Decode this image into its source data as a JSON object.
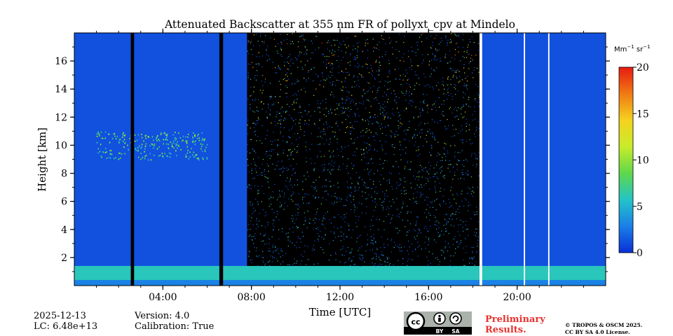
{
  "chart_data": {
    "type": "heatmap",
    "title": "Attenuated Backscatter at 355 nm FR of pollyxt_cpv at Mindelo",
    "xlabel": "Time [UTC]",
    "ylabel": "Height [km]",
    "xlim": [
      0,
      24
    ],
    "ylim": [
      0,
      18
    ],
    "x_ticks": [
      {
        "value": 4,
        "label": "04:00"
      },
      {
        "value": 8,
        "label": "08:00"
      },
      {
        "value": 12,
        "label": "12:00"
      },
      {
        "value": 16,
        "label": "16:00"
      },
      {
        "value": 20,
        "label": "20:00"
      }
    ],
    "y_ticks": [
      2,
      4,
      6,
      8,
      10,
      12,
      14,
      16
    ],
    "colorbar": {
      "label": "Mm-1 sr-1",
      "label_base": "Mm",
      "label_exp1": "−1",
      "label_mid": " sr",
      "label_exp2": "−1",
      "range": [
        0,
        20
      ],
      "ticks": [
        0,
        5,
        10,
        15,
        20
      ],
      "colors": [
        "#0a2fd6",
        "#1a7fe8",
        "#23c4c8",
        "#5fd84a",
        "#c8ec2a",
        "#f5d21e",
        "#f07a14",
        "#e81a10"
      ]
    },
    "layers": {
      "background_value": 1.2,
      "boundary_layer": {
        "top_km": 1.4,
        "value": 6
      },
      "surface_band": {
        "top_km": 0.4,
        "value": 3
      },
      "cloud_layer": {
        "base_km": 9,
        "top_km": 11,
        "times": [
          1,
          6
        ],
        "value": 8
      },
      "noise_period": {
        "start": 7.8,
        "end": 18.3
      }
    },
    "gaps": [
      {
        "start": 2.55,
        "end": 2.7,
        "color": "#000000"
      },
      {
        "start": 6.55,
        "end": 6.72,
        "color": "#000000"
      },
      {
        "start": 18.3,
        "end": 18.42,
        "color": "#ffffff"
      },
      {
        "start": 20.3,
        "end": 20.36,
        "color": "#ffffff"
      },
      {
        "start": 21.4,
        "end": 21.46,
        "color": "#ffffff"
      }
    ]
  },
  "meta": {
    "date": "2025-12-13",
    "lc": "LC: 6.48e+13",
    "version": "Version: 4.0",
    "calibration": "Calibration: True"
  },
  "cc_license": {
    "cc": "cc",
    "by": "BY",
    "sa": "SA"
  },
  "prelim": {
    "line1": "Preliminary",
    "line2": "Results."
  },
  "copyright": {
    "line1": "© TROPOS & OSCM 2025.",
    "line2": "CC BY SA 4.0 License."
  }
}
